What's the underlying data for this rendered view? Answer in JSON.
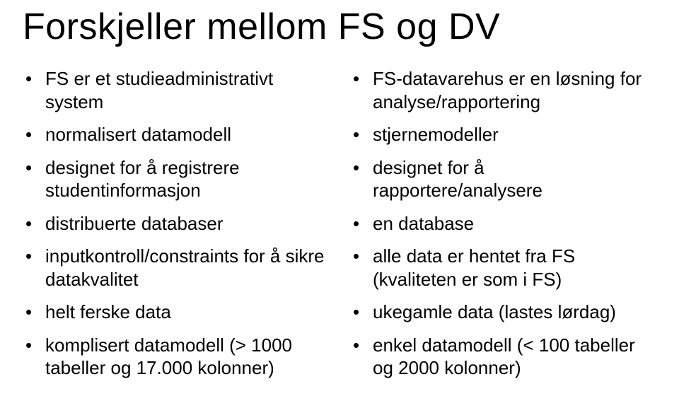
{
  "title": "Forskjeller mellom FS og DV",
  "left": {
    "items": [
      "FS er et studieadministrativt system",
      "normalisert datamodell",
      "designet for å registrere studentinformasjon",
      "distribuerte databaser",
      "inputkontroll/constraints for å sikre datakvalitet",
      "helt ferske data",
      "komplisert datamodell (> 1000 tabeller og 17.000 kolonner)"
    ]
  },
  "right": {
    "items": [
      "FS-datavarehus er en løsning for analyse/rapportering",
      "stjernemodeller",
      "designet for å rapportere/analysere",
      "en database",
      "alle data er hentet fra FS (kvaliteten er som i FS)",
      "ukegamle data (lastes lørdag)",
      "enkel datamodell (< 100 tabeller og 2000 kolonner)"
    ]
  },
  "style": {
    "background": "#ffffff",
    "text_color": "#000000",
    "title_fontsize": 52,
    "body_fontsize": 26,
    "font_family": "Arial"
  }
}
